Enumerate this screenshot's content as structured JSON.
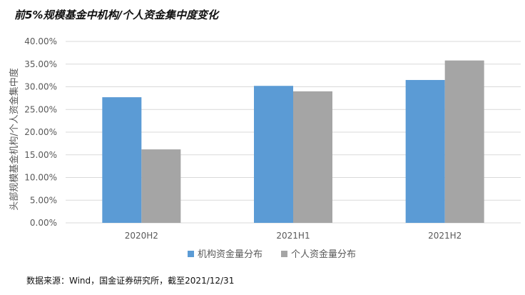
{
  "title": "前5%规模基金中机构/个人资金集中度变化",
  "source": "数据来源：Wind，国金证券研究所，截至2021/12/31",
  "chart_data": {
    "type": "bar",
    "title": "前5%规模基金中机构/个人资金集中度变化",
    "ylabel": "头部规模基金机构/个人资金集中度",
    "xlabel": "",
    "categories": [
      "2020H2",
      "2021H1",
      "2021H2"
    ],
    "series": [
      {
        "name": "机构资金量分布",
        "color": "#5b9bd5",
        "values": [
          27.7,
          30.2,
          31.5
        ]
      },
      {
        "name": "个人资金量分布",
        "color": "#a5a5a5",
        "values": [
          16.2,
          29.0,
          35.8
        ]
      }
    ],
    "ylim": [
      0,
      40
    ],
    "yticks": [
      "0.00%",
      "5.00%",
      "10.00%",
      "15.00%",
      "20.00%",
      "25.00%",
      "30.00%",
      "35.00%",
      "40.00%"
    ],
    "grid": true,
    "legend": "bottom"
  }
}
